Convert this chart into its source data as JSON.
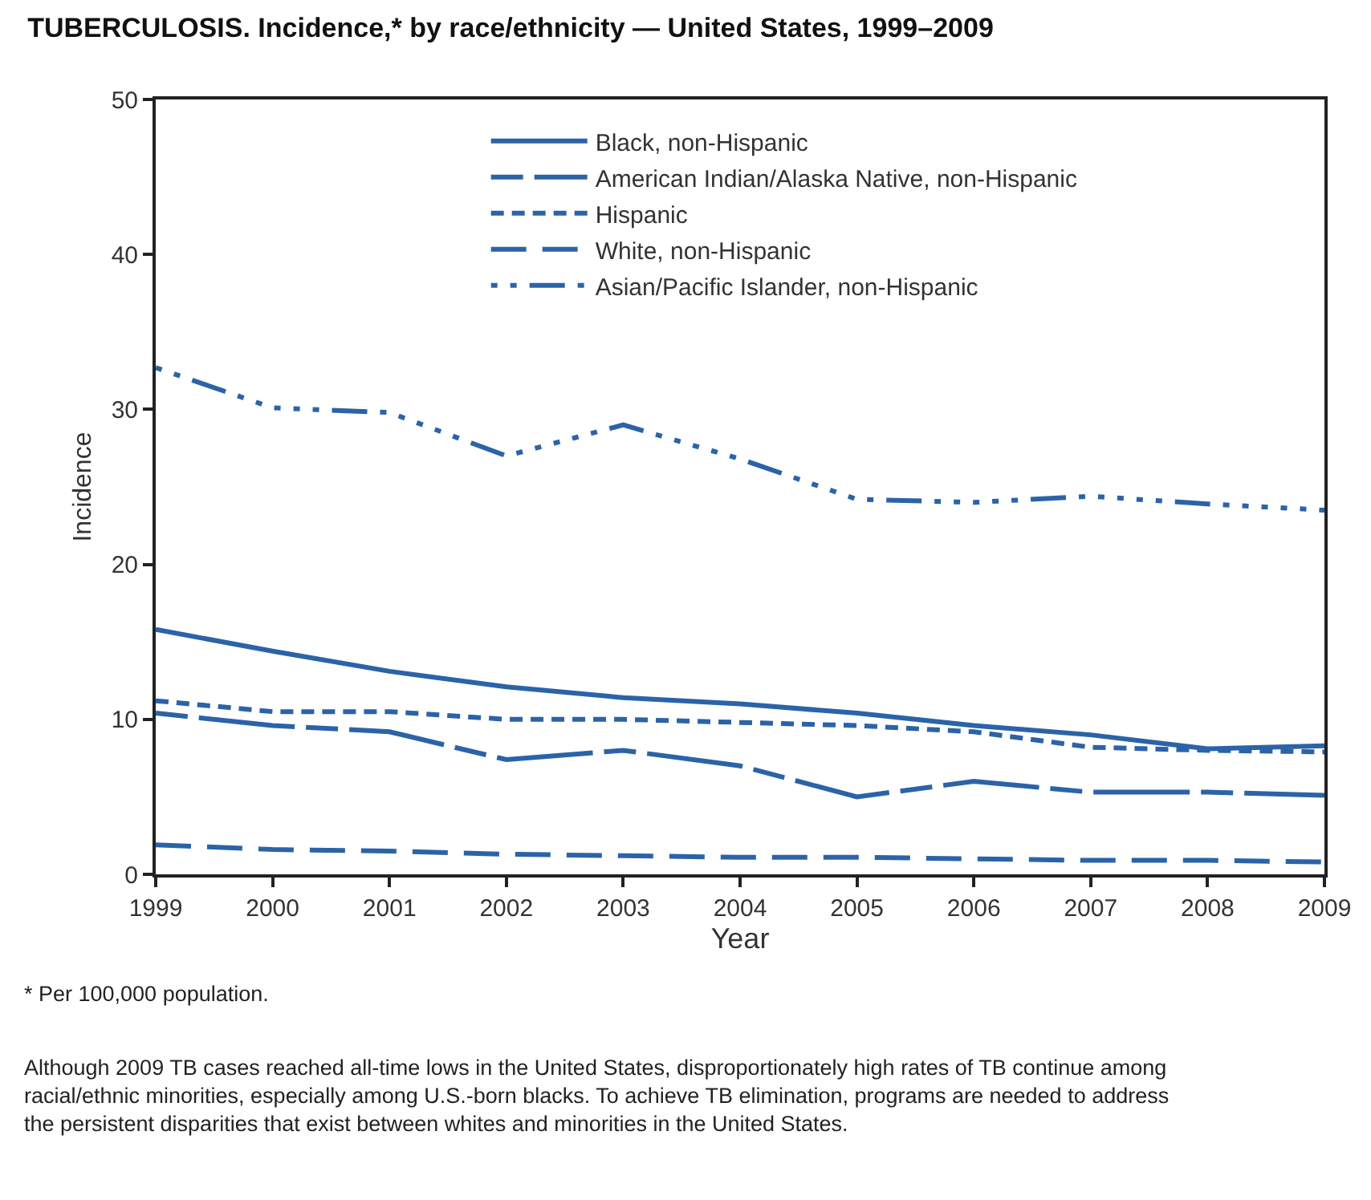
{
  "chart_data": {
    "type": "line",
    "title": "TUBERCULOSIS. Incidence,* by race/ethnicity — United States, 1999–2009",
    "xlabel": "Year",
    "ylabel": "Incidence",
    "x": [
      1999,
      2000,
      2001,
      2002,
      2003,
      2004,
      2005,
      2006,
      2007,
      2008,
      2009
    ],
    "xlim": [
      1999,
      2009
    ],
    "xticks": [
      1999,
      2000,
      2001,
      2002,
      2003,
      2004,
      2005,
      2006,
      2007,
      2008,
      2009
    ],
    "ylim": [
      0,
      50
    ],
    "yticks": [
      0,
      10,
      20,
      30,
      40,
      50
    ],
    "legend": "top right",
    "marker": "none",
    "series": [
      {
        "name": "Black, non-Hispanic",
        "color": "#2b63a8",
        "line_style": "solid",
        "values": [
          15.8,
          14.4,
          13.1,
          12.1,
          11.4,
          11.0,
          10.4,
          9.6,
          9.0,
          8.1,
          8.3
        ]
      },
      {
        "name": "American Indian/Alaska Native, non-Hispanic",
        "color": "#2b63a8",
        "line_style": "longdash",
        "values": [
          10.4,
          9.6,
          9.2,
          7.4,
          8.0,
          7.0,
          5.0,
          6.0,
          5.3,
          5.3,
          5.1
        ]
      },
      {
        "name": "Hispanic",
        "color": "#2b63a8",
        "line_style": "dashed",
        "values": [
          11.2,
          10.5,
          10.5,
          10.0,
          10.0,
          9.8,
          9.6,
          9.2,
          8.2,
          8.0,
          7.9
        ]
      },
      {
        "name": "White, non-Hispanic",
        "color": "#2b63a8",
        "line_style": "mediumdash",
        "values": [
          1.9,
          1.6,
          1.5,
          1.3,
          1.2,
          1.1,
          1.1,
          1.0,
          0.9,
          0.9,
          0.8
        ]
      },
      {
        "name": "Asian/Pacific Islander, non-Hispanic",
        "color": "#2b63a8",
        "line_style": "dashdotdot",
        "values": [
          32.7,
          30.1,
          29.8,
          27.0,
          29.0,
          26.8,
          24.2,
          24.0,
          24.4,
          23.9,
          23.5
        ]
      }
    ],
    "annotations": [
      "* Per 100,000 population.",
      "Although 2009 TB cases reached all-time lows in the United States, disproportionately high rates of TB continue among racial/ethnic minorities, especially among U.S.-born blacks. To achieve TB elimination, programs are needed to address the persistent disparities that exist between whites and minorities in the United States."
    ]
  }
}
